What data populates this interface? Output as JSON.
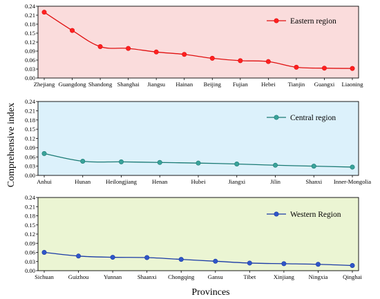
{
  "figure": {
    "ylabel": "Comprehensive index",
    "xlabel": "Provinces"
  },
  "chart_data": [
    {
      "type": "line",
      "series": [
        {
          "name": "Eastern region",
          "values": [
            0.22,
            0.159,
            0.105,
            0.099,
            0.087,
            0.079,
            0.066,
            0.058,
            0.055,
            0.036,
            0.033,
            0.032
          ]
        }
      ],
      "categories": [
        "Zhejiang",
        "Guangdong",
        "Shandong",
        "Shanghai",
        "Jiangsu",
        "Hainan",
        "Beijing",
        "Fujian",
        "Hebei",
        "Tianjin",
        "Guangxi",
        "Liaoning"
      ],
      "ylim": [
        0,
        0.24
      ],
      "yticks": [
        "0.00",
        "0.03",
        "0.06",
        "0.09",
        "0.12",
        "0.15",
        "0.18",
        "0.21",
        "0.24"
      ],
      "legend": "top-right",
      "colors": {
        "background": "#fadcdc",
        "line": "#e01010",
        "marker": "#ff2020"
      }
    },
    {
      "type": "line",
      "series": [
        {
          "name": "Central region",
          "values": [
            0.071,
            0.046,
            0.044,
            0.042,
            0.04,
            0.037,
            0.033,
            0.03,
            0.027
          ]
        }
      ],
      "categories": [
        "Anhui",
        "Hunan",
        "Heilongjiang",
        "Henan",
        "Hubei",
        "Jiangxi",
        "Jilin",
        "Shanxi",
        "Inner-Mongolia"
      ],
      "ylim": [
        0,
        0.24
      ],
      "yticks": [
        "0.00",
        "0.03",
        "0.06",
        "0.09",
        "0.12",
        "0.15",
        "0.18",
        "0.21",
        "0.24"
      ],
      "legend": "top-right",
      "colors": {
        "background": "#dcf1fb",
        "line": "#1a7a74",
        "marker": "#3aa39a"
      }
    },
    {
      "type": "line",
      "series": [
        {
          "name": "Western Region",
          "values": [
            0.06,
            0.048,
            0.044,
            0.043,
            0.037,
            0.031,
            0.025,
            0.023,
            0.021,
            0.017
          ]
        }
      ],
      "categories": [
        "Sichuan",
        "Guizhou",
        "Yunnan",
        "Shaanxi",
        "Chongqing",
        "Gansu",
        "Tibet",
        "Xinjiang",
        "Ningxia",
        "Qinghai"
      ],
      "ylim": [
        0,
        0.24
      ],
      "yticks": [
        "0.00",
        "0.03",
        "0.06",
        "0.09",
        "0.12",
        "0.15",
        "0.18",
        "0.21",
        "0.24"
      ],
      "legend": "top-right",
      "colors": {
        "background": "#ebf5d3",
        "line": "#1a3aa6",
        "marker": "#3056c8"
      }
    }
  ]
}
